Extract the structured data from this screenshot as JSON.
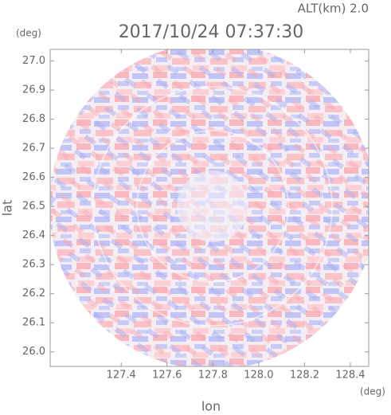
{
  "chart_data": {
    "type": "image",
    "title": "2017/10/24 07:37:30",
    "subtitle": "ALT(km) 2.0",
    "x_label": "lon",
    "y_label": "lat",
    "x_unit": "(deg)",
    "y_unit": "(deg)",
    "xlim": [
      127.09,
      128.48
    ],
    "ylim": [
      25.95,
      27.04
    ],
    "xticks": [
      127.4,
      127.6,
      127.8,
      {
        "value": 128,
        "label": "128.0"
      },
      128.2,
      128.4
    ],
    "yticks": [
      {
        "value": 26,
        "label": "26.0"
      },
      26.1,
      26.2,
      26.3,
      26.4,
      26.5,
      26.6,
      26.7,
      26.8,
      26.9,
      {
        "value": 27,
        "label": "27.0"
      }
    ]
  }
}
